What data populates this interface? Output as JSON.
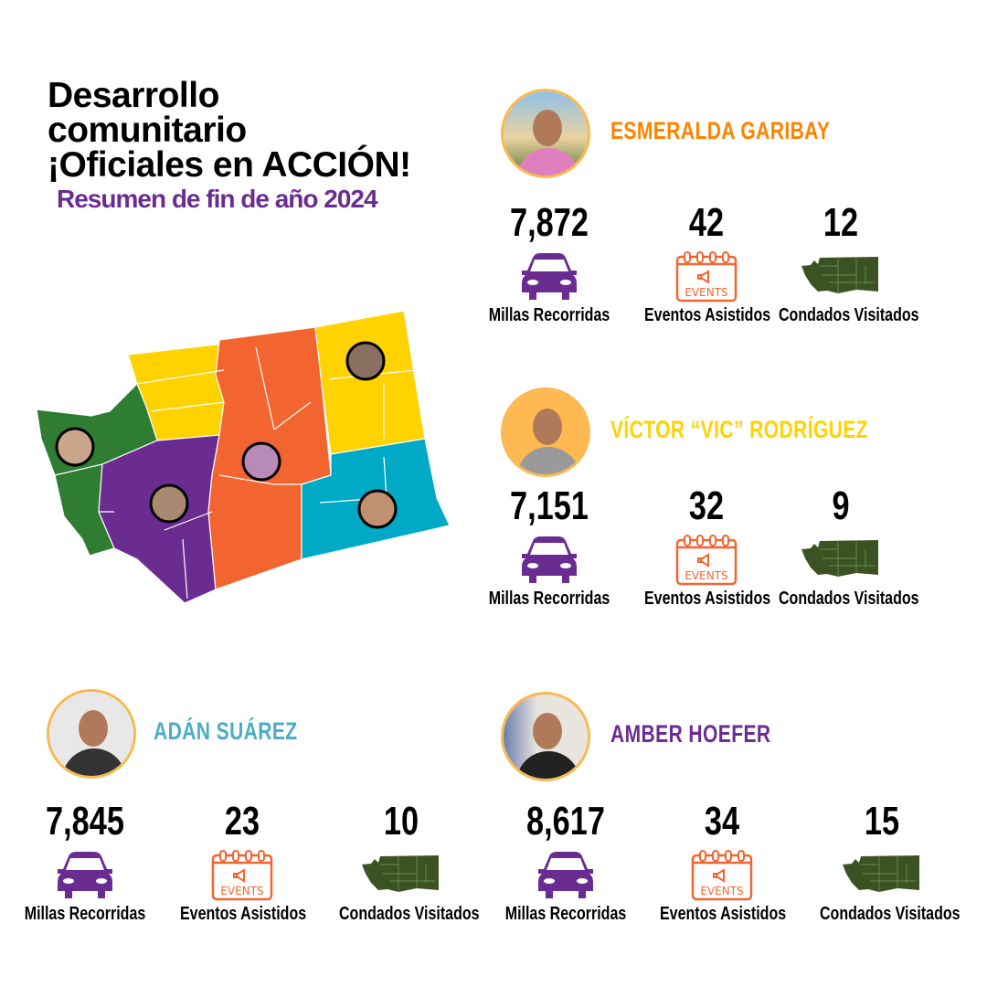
{
  "header": {
    "title_lines": [
      "Desarrollo",
      "comunitario",
      "¡Oficiales en ACCIÓN!"
    ],
    "subtitle": "Resumen de fin de año 2024"
  },
  "labels": {
    "miles": "Millas Recorridas",
    "events": "Eventos Asistidos",
    "counties": "Condados Visitados",
    "events_icon_text": "EVENTS"
  },
  "colors": {
    "orange": "#FF8200",
    "yellow": "#FFD200",
    "teal": "#4BACC6",
    "purple": "#6B2C91",
    "map_green": "#2E7D32",
    "map_orange": "#F26531",
    "map_cyan": "#00A9C5",
    "county_icon": "#3B5323"
  },
  "officials": [
    {
      "name": "ESMERALDA GARIBAY",
      "miles": "7,872",
      "events": "42",
      "counties": "12",
      "color": "#FF8200"
    },
    {
      "name": "VÍCTOR “VIC” RODRÍGUEZ",
      "miles": "7,151",
      "events": "32",
      "counties": "9",
      "color": "#FFD200"
    },
    {
      "name": "ADÁN SUÁREZ",
      "miles": "7,845",
      "events": "23",
      "counties": "10",
      "color": "#4BACC6"
    },
    {
      "name": "AMBER HOEFER",
      "miles": "8,617",
      "events": "34",
      "counties": "15",
      "color": "#6B2C91"
    }
  ],
  "icons": {
    "miles": "car-icon",
    "events": "calendar-events-icon",
    "counties": "washington-state-map-icon"
  }
}
